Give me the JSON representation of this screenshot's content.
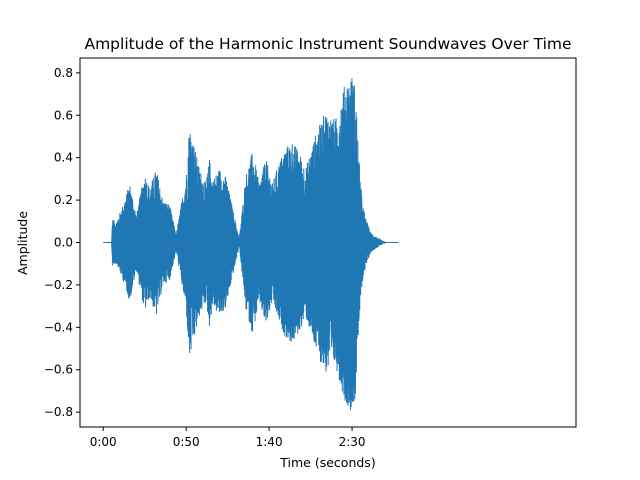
{
  "chart_data": {
    "type": "line",
    "title": "Amplitude of the Harmonic Instrument Soundwaves Over Time",
    "xlabel": "Time (seconds)",
    "ylabel": "Amplitude",
    "x_unit": "seconds",
    "xlim": [
      -14,
      285
    ],
    "ylim": [
      -0.87,
      0.87
    ],
    "x_ticks": [
      {
        "value": 0,
        "label": "0:00"
      },
      {
        "value": 50,
        "label": "0:50"
      },
      {
        "value": 100,
        "label": "1:40"
      },
      {
        "value": 150,
        "label": "2:30"
      }
    ],
    "y_ticks": [
      {
        "value": 0.8,
        "label": "0.8"
      },
      {
        "value": 0.6,
        "label": "0.6"
      },
      {
        "value": 0.4,
        "label": "0.4"
      },
      {
        "value": 0.2,
        "label": "0.2"
      },
      {
        "value": 0.0,
        "label": "0.0"
      },
      {
        "value": -0.2,
        "label": "−0.2"
      },
      {
        "value": -0.4,
        "label": "−0.4"
      },
      {
        "value": -0.6,
        "label": "−0.6"
      },
      {
        "value": -0.8,
        "label": "−0.8"
      }
    ],
    "grid": false,
    "series": [
      {
        "color": "#1f77b4",
        "envelope_description_points": {
          "x": [
            0,
            5,
            5.5,
            8,
            12,
            16,
            20,
            25,
            28,
            32,
            36,
            40,
            44,
            50,
            52,
            58,
            62,
            64,
            66,
            70,
            74,
            78,
            82,
            86,
            90,
            92,
            94,
            98,
            102,
            106,
            110,
            114,
            118,
            122,
            128,
            134,
            140,
            146,
            150,
            152,
            154,
            156,
            158,
            161,
            164,
            168,
            170,
            175,
            178
          ],
          "upper": [
            0,
            0,
            0.11,
            0.1,
            0.18,
            0.28,
            0.13,
            0.33,
            0.26,
            0.35,
            0.2,
            0.18,
            0.04,
            0.32,
            0.56,
            0.35,
            0.28,
            0.4,
            0.3,
            0.35,
            0.31,
            0.16,
            0.02,
            0.32,
            0.43,
            0.36,
            0.28,
            0.4,
            0.28,
            0.38,
            0.45,
            0.48,
            0.43,
            0.35,
            0.51,
            0.62,
            0.58,
            0.76,
            0.79,
            0.74,
            0.42,
            0.2,
            0.12,
            0.05,
            0.03,
            0.01,
            0.0,
            0.0,
            0.0
          ],
          "lower": [
            0,
            0,
            -0.11,
            -0.1,
            -0.18,
            -0.28,
            -0.13,
            -0.33,
            -0.26,
            -0.35,
            -0.2,
            -0.18,
            -0.04,
            -0.32,
            -0.56,
            -0.35,
            -0.28,
            -0.4,
            -0.3,
            -0.35,
            -0.31,
            -0.16,
            -0.02,
            -0.32,
            -0.43,
            -0.36,
            -0.28,
            -0.4,
            -0.28,
            -0.38,
            -0.45,
            -0.48,
            -0.43,
            -0.35,
            -0.51,
            -0.62,
            -0.58,
            -0.76,
            -0.8,
            -0.74,
            -0.42,
            -0.2,
            -0.12,
            -0.05,
            -0.03,
            -0.01,
            0.0,
            0.0,
            0.0
          ]
        }
      }
    ]
  }
}
